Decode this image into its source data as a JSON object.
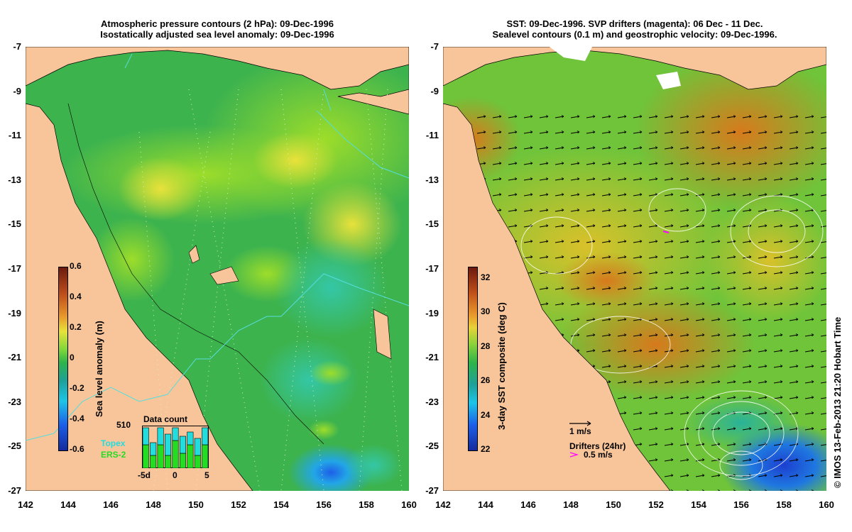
{
  "left_panel": {
    "title_line1": "Atmospheric pressure contours (2 hPa): 09-Dec-1996",
    "title_line2": "Isostatically adjusted sea level anomaly: 09-Dec-1996",
    "colorbar_label": "Sea level anomaly (m)",
    "colorbar_ticks": [
      "0.6",
      "0.4",
      "0.2",
      "0",
      "-0.2",
      "-0.4",
      "-0.6"
    ],
    "data_count": {
      "title": "Data count",
      "max_label": "510",
      "x_labels": [
        "-5d",
        "0",
        "5"
      ],
      "series": [
        {
          "name": "Topex",
          "color": "#22dddd"
        },
        {
          "name": "ERS-2",
          "color": "#22dd22"
        }
      ],
      "topex": [
        0.4,
        0.3,
        0.4,
        0.5,
        0.3,
        0.4,
        0.3,
        0.4,
        0.4
      ],
      "ers2": [
        0.55,
        0.3,
        0.55,
        0.3,
        0.65,
        0.35,
        0.55,
        0.3,
        0.55
      ]
    }
  },
  "right_panel": {
    "title_line1": "SST: 09-Dec-1996. SVP drifters (magenta): 06 Dec - 11 Dec.",
    "title_line2": "Sealevel contours (0.1 m) and geostrophic velocity: 09-Dec-1996.",
    "colorbar_label": "3-day SST composite (deg C)",
    "colorbar_ticks": [
      "32",
      "30",
      "28",
      "26",
      "24",
      "22"
    ],
    "velocity_scale_label": "1 m/s",
    "drifters_label": "Drifters (24hr)",
    "drifters_scale_label": "0.5 m/s",
    "drifter_color": "#ff00ff"
  },
  "axes": {
    "y_ticks": [
      "-7",
      "-9",
      "-11",
      "-13",
      "-15",
      "-17",
      "-19",
      "-21",
      "-23",
      "-25",
      "-27"
    ],
    "x_ticks": [
      "142",
      "144",
      "146",
      "148",
      "150",
      "152",
      "154",
      "156",
      "158",
      "160"
    ]
  },
  "colors": {
    "land": "#f8c59a",
    "sla_base": "#33b04a",
    "sst_base": "#3cb83c",
    "coastline": "#000000",
    "track": "#55dddd"
  },
  "credit": "© IMOS 13-Feb-2013 21:20 Hobart Time"
}
